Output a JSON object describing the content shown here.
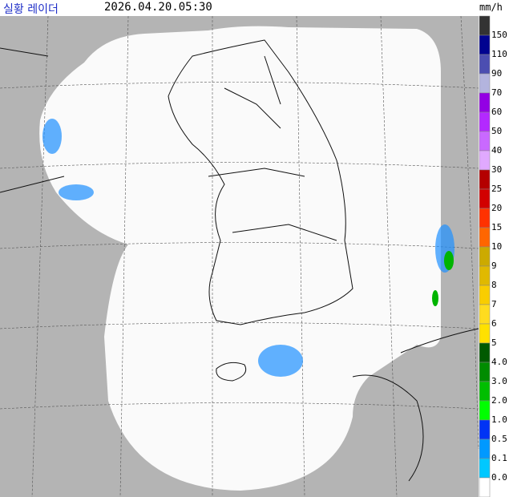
{
  "header": {
    "title": "실황 레이더",
    "time": "2026.04.20.05:30"
  },
  "legend": {
    "unit": "mm/h",
    "labels": [
      "150",
      "110",
      "90",
      "70",
      "60",
      "50",
      "40",
      "30",
      "25",
      "20",
      "15",
      "10",
      "9",
      "8",
      "7",
      "6",
      "5",
      "4.0",
      "3.0",
      "2.0",
      "1.0",
      "0.5",
      "0.1",
      "0.0"
    ],
    "colors": [
      "#333333",
      "#000390",
      "#4c4eb1",
      "#b3b4de",
      "#9300e4",
      "#b329ff",
      "#c969ff",
      "#e0a9ff",
      "#b40000",
      "#d20000",
      "#ff3200",
      "#ff6600",
      "#ccaa00",
      "#e0b900",
      "#f9cd00",
      "#ffdc1f",
      "#ffe100",
      "#005a00",
      "#008c00",
      "#00be00",
      "#00ff00",
      "#0033f5",
      "#0099ff",
      "#00c8ff",
      "#ffffff"
    ]
  }
}
